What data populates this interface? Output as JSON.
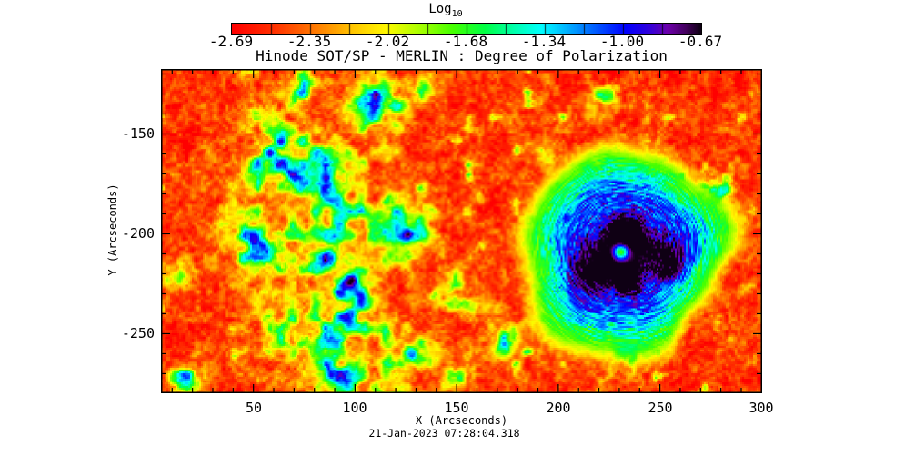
{
  "page": {
    "background": "#ffffff"
  },
  "colorbar": {
    "label": "Log",
    "label_subscript": "10",
    "tick_labels": [
      "-2.69",
      "-2.35",
      "-2.02",
      "-1.68",
      "-1.34",
      "-1.00",
      "-0.67"
    ]
  },
  "plot": {
    "title": "Hinode SOT/SP - MERLIN : Degree of Polarization",
    "xlabel": "X (Arcseconds)",
    "ylabel": "Y (Arcseconds)",
    "timestamp": "21-Jan-2023 07:28:04.318",
    "x_tick_labels": [
      "50",
      "100",
      "150",
      "200",
      "250",
      "300"
    ],
    "y_tick_labels": [
      "-150",
      "-200",
      "-250"
    ]
  },
  "chart_data": {
    "type": "heatmap",
    "title": "Hinode SOT/SP - MERLIN : Degree of Polarization",
    "xlabel": "X (Arcseconds)",
    "ylabel": "Y (Arcseconds)",
    "annotation": "21-Jan-2023 07:28:04.318",
    "xlim": [
      4.5,
      300.3
    ],
    "ylim": [
      -279.8,
      -117.5
    ],
    "x_ticks": [
      50,
      100,
      150,
      200,
      250,
      300
    ],
    "y_ticks": [
      -150,
      -200,
      -250
    ],
    "x_minor_step": 10,
    "y_minor_step": 10,
    "grid": false,
    "colorbar": {
      "label": "Log10",
      "position": "top",
      "vmin": -2.69,
      "vmax": -0.67,
      "ticks": [
        -2.69,
        -2.35,
        -2.02,
        -1.68,
        -1.34,
        -1.0,
        -0.67
      ],
      "gradient_stops": [
        [
          0.0,
          "#ff0000"
        ],
        [
          0.09,
          "#ff3200"
        ],
        [
          0.18,
          "#ff7d00"
        ],
        [
          0.26,
          "#ffc800"
        ],
        [
          0.33,
          "#fffa00"
        ],
        [
          0.4,
          "#aaff00"
        ],
        [
          0.47,
          "#46ff00"
        ],
        [
          0.54,
          "#00ff46"
        ],
        [
          0.6,
          "#00ffaa"
        ],
        [
          0.66,
          "#00ffff"
        ],
        [
          0.72,
          "#00aaff"
        ],
        [
          0.78,
          "#0055ff"
        ],
        [
          0.84,
          "#0000ff"
        ],
        [
          0.89,
          "#3200dc"
        ],
        [
          0.93,
          "#6e00aa"
        ],
        [
          0.97,
          "#41005a"
        ],
        [
          1.0,
          "#0f0014"
        ]
      ]
    },
    "features": {
      "quiet_sun_log10_pol": -2.45,
      "network_patches": [
        {
          "x": 80,
          "y": -185,
          "r": 30,
          "v": -1.25
        },
        {
          "x": 84,
          "y": -245,
          "r": 26,
          "v": -1.3
        },
        {
          "x": 100,
          "y": -215,
          "r": 14,
          "v": -1.3
        },
        {
          "x": 62,
          "y": -160,
          "r": 16,
          "v": -1.3
        },
        {
          "x": 45,
          "y": -205,
          "r": 12,
          "v": -1.35
        },
        {
          "x": 114,
          "y": -138,
          "r": 15,
          "v": -1.25
        },
        {
          "x": 73,
          "y": -127,
          "r": 10,
          "v": -1.3
        },
        {
          "x": 138,
          "y": -125,
          "r": 6,
          "v": -1.4
        },
        {
          "x": 127,
          "y": -200,
          "r": 13,
          "v": -1.35
        },
        {
          "x": 151,
          "y": -230,
          "r": 9,
          "v": -1.45
        },
        {
          "x": 99,
          "y": -233,
          "r": 12,
          "v": -1.8
        },
        {
          "x": 127,
          "y": -264,
          "r": 12,
          "v": -1.3
        },
        {
          "x": 170,
          "y": -251,
          "r": 10,
          "v": -1.35
        },
        {
          "x": 118,
          "y": -277,
          "r": 9,
          "v": -1.3
        },
        {
          "x": 95,
          "y": -272,
          "r": 10,
          "v": -1.45
        },
        {
          "x": 150,
          "y": -270,
          "r": 8,
          "v": -1.5
        },
        {
          "x": 17,
          "y": -271,
          "r": 9,
          "v": -1.3
        },
        {
          "x": 9,
          "y": -219,
          "r": 8,
          "v": -1.4
        },
        {
          "x": 194,
          "y": -156,
          "r": 7,
          "v": -1.4
        },
        {
          "x": 221,
          "y": -134,
          "r": 8,
          "v": -1.45
        },
        {
          "x": 234,
          "y": -257,
          "r": 7,
          "v": -1.1
        },
        {
          "x": 212,
          "y": -248,
          "r": 5,
          "v": -1.2
        },
        {
          "x": 281,
          "y": -181,
          "r": 5,
          "v": -1.25
        },
        {
          "x": 292,
          "y": -228,
          "r": 4,
          "v": -1.3
        }
      ],
      "sunspot": {
        "x": 233,
        "y": -208.5,
        "r": 47,
        "umbra_v": -0.72,
        "penumbra_v": -1.05,
        "ring_v": -1.62,
        "umbra_cores": [
          {
            "x": 215.5,
            "y": -218.5,
            "r": 10
          },
          {
            "x": 234,
            "y": -199,
            "r": 7.5
          },
          {
            "x": 255,
            "y": -213.5,
            "r": 9
          },
          {
            "x": 234,
            "y": -224,
            "r": 6.5
          }
        ],
        "central_hole": {
          "x": 231,
          "y": -209,
          "r": 3.5
        }
      }
    }
  }
}
